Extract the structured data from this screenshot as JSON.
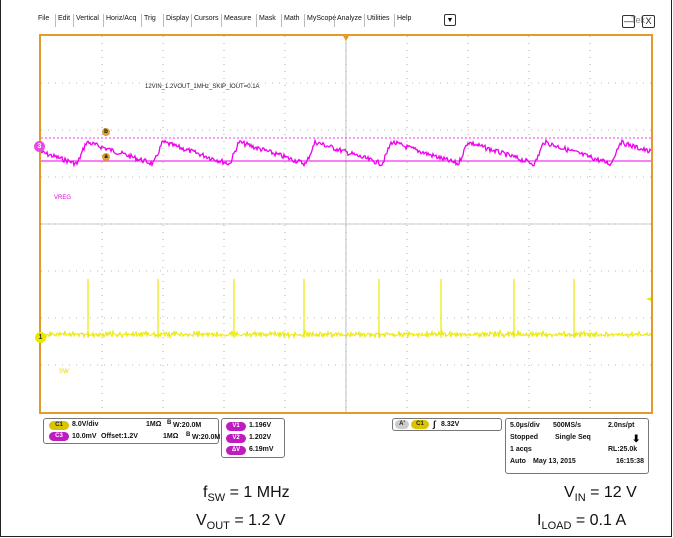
{
  "menu": {
    "items": [
      "File",
      "Edit",
      "Vertical",
      "Horiz/Acq",
      "Trig",
      "Display",
      "Cursors",
      "Measure",
      "Mask",
      "Math",
      "MyScope",
      "Analyze",
      "Utilities",
      "Help"
    ],
    "dropdown": "▼",
    "logo": "Tek",
    "minimize": "—",
    "close": "X"
  },
  "scope": {
    "annotation": "12VIN_1.2VOUT_1MHz_SKIP_IOUT=0.1A",
    "ch3_label": "VREG",
    "ch1_label": "SW",
    "ch3_marker": "3",
    "ch1_marker": "1",
    "cursor_a": "a",
    "cursor_b": "b",
    "colors": {
      "ch1": "#e8e800",
      "ch3": "#ee00ee",
      "frame": "#e39a2b",
      "grid": "#777777"
    }
  },
  "status": {
    "ch1_badge": "C1",
    "ch1_scale": "8.0V/div",
    "ch1_coupling": "1MΩ",
    "ch1_bw_label": "B",
    "ch1_bw": "W:20.0M",
    "ch3_badge": "C3",
    "ch3_scale": "10.0mV",
    "ch3_offset": "Offset:1.2V",
    "ch3_coupling": "1MΩ",
    "ch3_bw_label": "B",
    "ch3_bw": "W:20.0M",
    "meas": [
      {
        "badge": "V1",
        "value": "1.196V"
      },
      {
        "badge": "V2",
        "value": "1.202V"
      },
      {
        "badge": "ΔV",
        "value": "6.19mV"
      }
    ],
    "trig_a": "A'",
    "trig_ch": "C1",
    "trig_slope": "∫",
    "trig_level": "8.32V",
    "horiz_scale": "5.0µs/div",
    "sample_rate": "500MS/s",
    "resolution": "2.0ns/pt",
    "acq_state": "Stopped",
    "acq_mode": "Single Seq",
    "acqs": "1 acqs",
    "record_length": "RL:25.0k",
    "trigger_mode": "Auto",
    "date": "May 13, 2015",
    "time": "16:15:38"
  },
  "captions": {
    "fsw_main": "f",
    "fsw_sub": "SW",
    "fsw_value": " = 1 MHz",
    "vout_main": "V",
    "vout_sub": "OUT",
    "vout_value": " = 1.2 V",
    "vin_main": "V",
    "vin_sub": "IN",
    "vin_value": " = 12 V",
    "iload_main": "I",
    "iload_sub": "LOAD",
    "iload_value": " = 0.1 A"
  }
}
